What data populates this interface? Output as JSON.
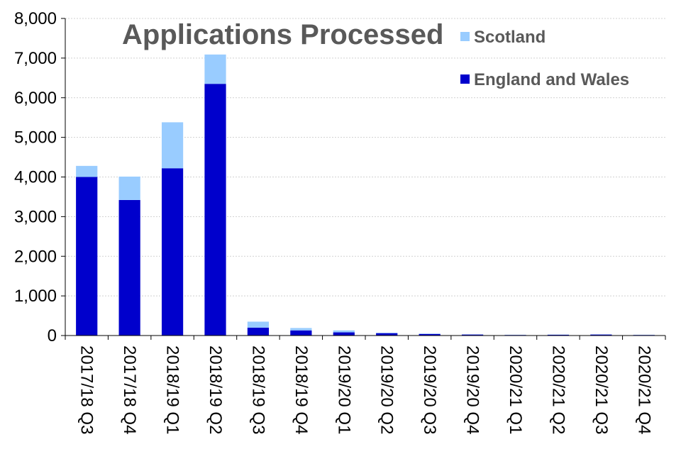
{
  "chart_data": {
    "type": "bar",
    "stacked": true,
    "title": "Applications Processed",
    "xlabel": "",
    "ylabel": "",
    "ylim": [
      0,
      8000
    ],
    "yticks": [
      "0",
      "1,000",
      "2,000",
      "3,000",
      "4,000",
      "5,000",
      "6,000",
      "7,000",
      "8,000"
    ],
    "ytick_values": [
      0,
      1000,
      2000,
      3000,
      4000,
      5000,
      6000,
      7000,
      8000
    ],
    "grid": true,
    "legend_position": "top-right",
    "categories": [
      "2017/18 Q3",
      "2017/18 Q4",
      "2018/19 Q1",
      "2018/19 Q2",
      "2018/19 Q3",
      "2018/19 Q4",
      "2019/20 Q1",
      "2019/20 Q2",
      "2019/20 Q3",
      "2019/20 Q4",
      "2020/21 Q1",
      "2020/21 Q2",
      "2020/21 Q3",
      "2020/21 Q4"
    ],
    "series": [
      {
        "name": "England and Wales",
        "color": "#0000CC",
        "values": [
          4000,
          3420,
          4220,
          6350,
          200,
          130,
          80,
          60,
          40,
          25,
          15,
          20,
          25,
          15
        ]
      },
      {
        "name": "Scotland",
        "color": "#99CCFF",
        "values": [
          280,
          590,
          1160,
          740,
          150,
          60,
          50,
          10,
          10,
          5,
          5,
          5,
          5,
          5
        ]
      }
    ],
    "legend": [
      "Scotland",
      "England and Wales"
    ]
  }
}
